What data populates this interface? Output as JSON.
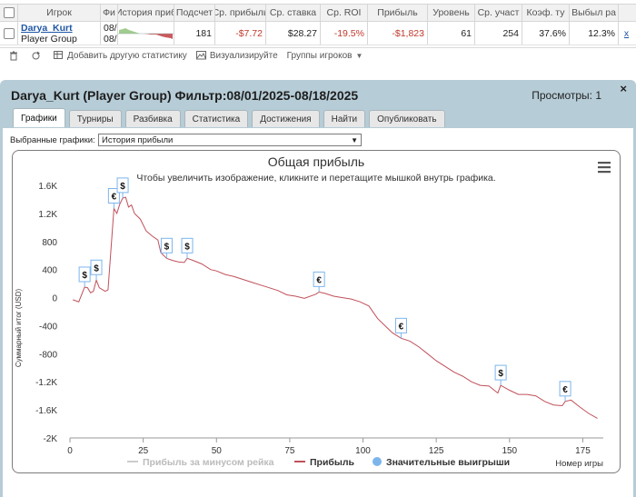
{
  "stats_table": {
    "headers": [
      "Игрок",
      "Фи",
      "История приб",
      "Подсчет",
      "Ср. прибыль",
      "Ср. ставка",
      "Ср. ROI",
      "Прибыль",
      "Уровень",
      "Ср. участ",
      "Коэф. ту",
      "Выбыл ра"
    ],
    "player_name": "Darya_Kurt",
    "player_group": "Player Group",
    "filter_top": "08/",
    "filter_bottom": "08/",
    "count": "181",
    "avg_profit": "-$7.72",
    "avg_stake": "$28.27",
    "avg_roi": "-19.5%",
    "profit": "-$1,823",
    "level": "61",
    "avg_entrants": "254",
    "itm_ratio": "37.6%",
    "knockout": "12.3%",
    "remove": "x"
  },
  "toolbar": {
    "add_stats": "Добавить другую статистику",
    "visualize": "Визуализируйте",
    "player_groups": "Группы игроков"
  },
  "report": {
    "title": "Darya_Kurt (Player Group) Фильтр:08/01/2025-08/18/2025",
    "views": "Просмотры: 1",
    "close": "×",
    "tabs": [
      "Графики",
      "Турниры",
      "Разбивка",
      "Статистика",
      "Достижения",
      "Найти",
      "Опубликовать"
    ],
    "select_label": "Выбранные графики:",
    "select_value": "История прибыли"
  },
  "chart_data": {
    "type": "line",
    "title": "Общая прибыль",
    "subtitle": "Чтобы увеличить изображение, кликните и перетащите мышкой внутрь графика.",
    "xlabel": "Номер игры",
    "ylabel": "Суммарный итог (USD)",
    "xlim": [
      0,
      182
    ],
    "ylim": [
      -2000,
      1600
    ],
    "x_ticks": [
      0,
      25,
      50,
      75,
      100,
      125,
      150,
      175
    ],
    "y_ticks": [
      1600,
      1200,
      800,
      400,
      0,
      -400,
      -800,
      -1200,
      -1600,
      -2000
    ],
    "y_tick_labels": [
      "1.6K",
      "1.2K",
      "800",
      "400",
      "0",
      "-400",
      "-800",
      "-1.2K",
      "-1.6K",
      "-2K"
    ],
    "legend": [
      "Прибыль за минусом рейка",
      "Прибыль",
      "Значительные выигрыши"
    ],
    "legend_placement": "bottom",
    "grid": false,
    "series": [
      {
        "name": "Прибыль",
        "color": "#c0505a",
        "points": [
          [
            1,
            -30
          ],
          [
            3,
            -60
          ],
          [
            5,
            150
          ],
          [
            6,
            140
          ],
          [
            7,
            70
          ],
          [
            8,
            90
          ],
          [
            9,
            250
          ],
          [
            10,
            140
          ],
          [
            12,
            90
          ],
          [
            13,
            110
          ],
          [
            15,
            1270
          ],
          [
            16,
            1200
          ],
          [
            17,
            1330
          ],
          [
            18,
            1420
          ],
          [
            19,
            1430
          ],
          [
            20,
            1290
          ],
          [
            21,
            1320
          ],
          [
            22,
            1200
          ],
          [
            24,
            1120
          ],
          [
            26,
            950
          ],
          [
            28,
            880
          ],
          [
            30,
            820
          ],
          [
            31,
            640
          ],
          [
            33,
            560
          ],
          [
            35,
            530
          ],
          [
            37,
            510
          ],
          [
            39,
            500
          ],
          [
            40,
            560
          ],
          [
            42,
            530
          ],
          [
            45,
            480
          ],
          [
            48,
            400
          ],
          [
            50,
            380
          ],
          [
            53,
            330
          ],
          [
            56,
            300
          ],
          [
            59,
            260
          ],
          [
            62,
            220
          ],
          [
            65,
            180
          ],
          [
            68,
            140
          ],
          [
            71,
            100
          ],
          [
            74,
            40
          ],
          [
            77,
            20
          ],
          [
            80,
            -10
          ],
          [
            84,
            50
          ],
          [
            85,
            80
          ],
          [
            87,
            60
          ],
          [
            90,
            20
          ],
          [
            93,
            0
          ],
          [
            96,
            -20
          ],
          [
            99,
            -60
          ],
          [
            102,
            -120
          ],
          [
            105,
            -300
          ],
          [
            108,
            -420
          ],
          [
            110,
            -500
          ],
          [
            113,
            -580
          ],
          [
            116,
            -620
          ],
          [
            119,
            -700
          ],
          [
            122,
            -800
          ],
          [
            125,
            -900
          ],
          [
            128,
            -980
          ],
          [
            131,
            -1060
          ],
          [
            134,
            -1120
          ],
          [
            137,
            -1200
          ],
          [
            140,
            -1250
          ],
          [
            143,
            -1260
          ],
          [
            146,
            -1360
          ],
          [
            147,
            -1250
          ],
          [
            150,
            -1320
          ],
          [
            153,
            -1380
          ],
          [
            156,
            -1380
          ],
          [
            159,
            -1400
          ],
          [
            162,
            -1480
          ],
          [
            165,
            -1530
          ],
          [
            168,
            -1540
          ],
          [
            169,
            -1480
          ],
          [
            171,
            -1460
          ],
          [
            174,
            -1560
          ],
          [
            177,
            -1650
          ],
          [
            180,
            -1720
          ]
        ]
      }
    ],
    "big_wins": [
      {
        "x": 5,
        "y": 150,
        "symbol": "$"
      },
      {
        "x": 9,
        "y": 250,
        "symbol": "$"
      },
      {
        "x": 15,
        "y": 1270,
        "symbol": "€"
      },
      {
        "x": 18,
        "y": 1420,
        "symbol": "$"
      },
      {
        "x": 33,
        "y": 560,
        "symbol": "$"
      },
      {
        "x": 40,
        "y": 560,
        "symbol": "$"
      },
      {
        "x": 85,
        "y": 80,
        "symbol": "€"
      },
      {
        "x": 113,
        "y": -580,
        "symbol": "€"
      },
      {
        "x": 147,
        "y": -1250,
        "symbol": "$"
      },
      {
        "x": 169,
        "y": -1480,
        "symbol": "€"
      }
    ]
  }
}
